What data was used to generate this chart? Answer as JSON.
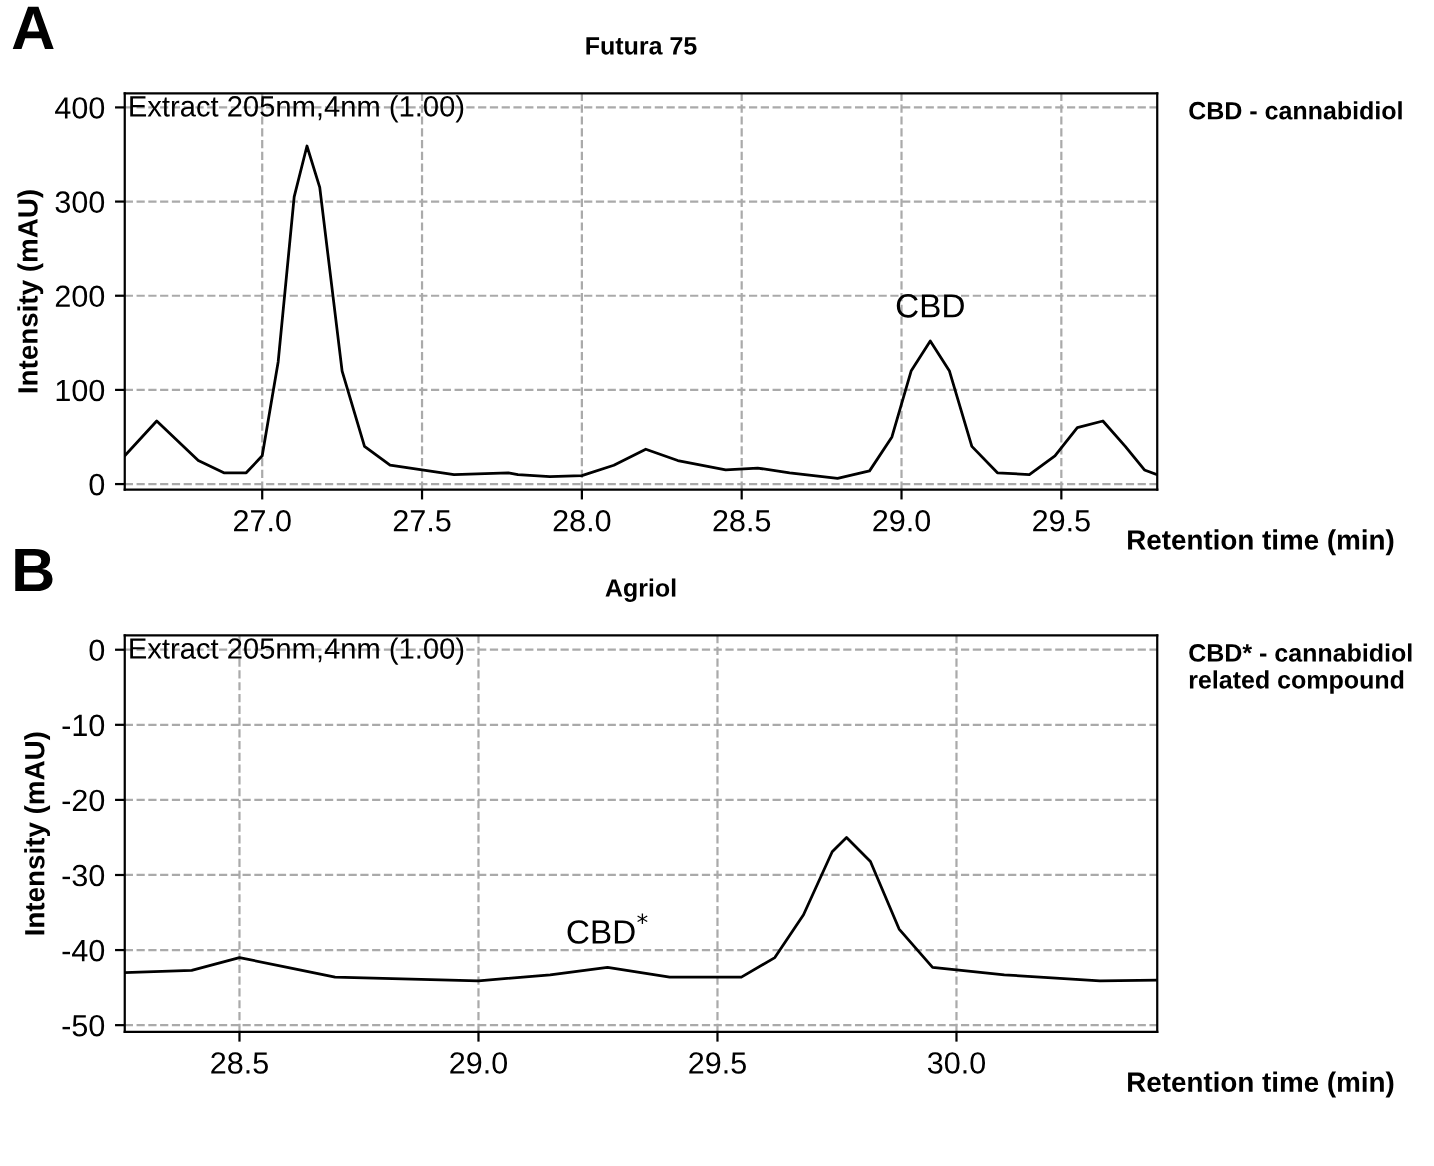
{
  "chart_data": [
    {
      "type": "line",
      "title": "Futura 75",
      "xlabel": "Retention time (min)",
      "ylabel": "Intensity (mAU)",
      "annotations": [
        "A",
        "Extract 205nm,4nm (1.00)",
        "CBD - cannabidiol",
        {
          "text": "CBD",
          "x": 29.09,
          "y": 152
        }
      ],
      "series": [
        {
          "color": "#000000",
          "x": [
            26.57,
            26.67,
            26.8,
            26.88,
            26.95,
            27.0,
            27.05,
            27.1,
            27.14,
            27.18,
            27.25,
            27.32,
            27.4,
            27.5,
            27.6,
            27.77,
            27.8,
            27.9,
            28.0,
            28.1,
            28.2,
            28.3,
            28.45,
            28.55,
            28.65,
            28.8,
            28.9,
            28.97,
            29.03,
            29.09,
            29.15,
            29.22,
            29.3,
            29.4,
            29.48,
            29.55,
            29.63,
            29.7,
            29.76,
            29.8
          ],
          "values": [
            30,
            67,
            25,
            12,
            12,
            30,
            130,
            305,
            359,
            315,
            120,
            40,
            20,
            15,
            10,
            12,
            10,
            8,
            9,
            20,
            37,
            25,
            15,
            17,
            12,
            6,
            14,
            50,
            120,
            152,
            120,
            40,
            12,
            10,
            30,
            60,
            67,
            40,
            15,
            10
          ]
        }
      ],
      "xlim": [
        26.57,
        29.8
      ],
      "xticks": [
        {
          "value": 27.0,
          "label": "27.0"
        },
        27.5,
        {
          "value": 28.0,
          "label": "28.0"
        },
        28.5,
        {
          "value": 29.0,
          "label": "29.0"
        },
        29.5
      ],
      "ylim": [
        -6,
        415
      ],
      "yticks": [
        0,
        100,
        200,
        300,
        400
      ],
      "grid": true,
      "line_style": "solid"
    },
    {
      "type": "line",
      "title": "Agriol",
      "xlabel": "Retention time (min)",
      "ylabel": "Intensity (mAU)",
      "annotations": [
        "B",
        "Extract 205nm,4nm (1.00)",
        "CBD* - cannabidiol\nrelated compound",
        {
          "text": "CBD$^{*}$",
          "x": 29.27,
          "y": -42.3
        }
      ],
      "series": [
        {
          "color": "#000000",
          "x": [
            28.26,
            28.4,
            28.5,
            28.6,
            28.7,
            29.0,
            29.15,
            29.27,
            29.4,
            29.55,
            29.62,
            29.68,
            29.74,
            29.77,
            29.82,
            29.88,
            29.95,
            30.1,
            30.3,
            30.42
          ],
          "values": [
            -43,
            -42.7,
            -41,
            -42.3,
            -43.6,
            -44.1,
            -43.3,
            -42.3,
            -43.6,
            -43.6,
            -41,
            -35.3,
            -26.9,
            -25,
            -28.2,
            -37.2,
            -42.3,
            -43.3,
            -44.1,
            -44
          ]
        }
      ],
      "xlim": [
        28.26,
        30.42
      ],
      "xticks": [
        {
          "value": 28.5,
          "label": "28.5"
        },
        {
          "value": 29.0,
          "label": "29.0"
        },
        {
          "value": 29.5,
          "label": "29.5"
        },
        {
          "value": 30.0,
          "label": "30.0"
        }
      ],
      "ylim": [
        -50.9,
        1.9
      ],
      "yticks": [
        0,
        -10,
        -20,
        -30,
        -40,
        -50
      ],
      "grid": true,
      "line_style": "solid"
    }
  ]
}
